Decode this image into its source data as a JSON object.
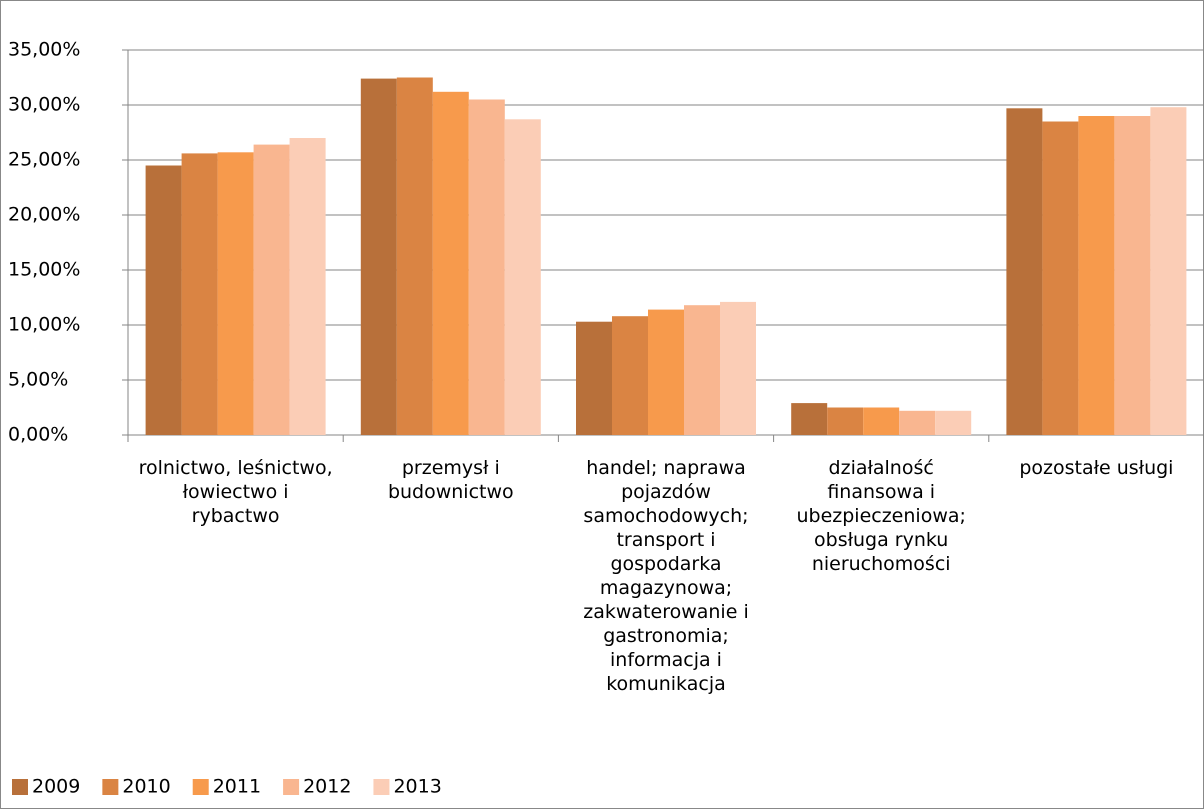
{
  "chart_data": {
    "type": "bar",
    "categories": [
      "rolnictwo, leśnictwo, łowiectwo i rybactwo",
      "przemysł i budownictwo",
      "handel; naprawa pojazdów samochodowych; transport i gospodarka magazynowa; zakwaterowanie i gastronomia; informacja i komunikacja",
      "działalność finansowa i ubezpieczeniowa; obsługa rynku nieruchomości",
      "pozostałe usługi"
    ],
    "series": [
      {
        "name": "2009",
        "color": "#b8703a",
        "values": [
          24.5,
          32.4,
          10.3,
          2.9,
          29.7
        ]
      },
      {
        "name": "2010",
        "color": "#da8443",
        "values": [
          25.6,
          32.5,
          10.8,
          2.5,
          28.5
        ]
      },
      {
        "name": "2011",
        "color": "#f79a4c",
        "values": [
          25.7,
          31.2,
          11.4,
          2.5,
          29.0
        ]
      },
      {
        "name": "2012",
        "color": "#f9b690",
        "values": [
          26.4,
          30.5,
          11.8,
          2.2,
          29.0
        ]
      },
      {
        "name": "2013",
        "color": "#fbcdb6",
        "values": [
          27.0,
          28.7,
          12.1,
          2.2,
          29.8
        ]
      }
    ],
    "ylim": [
      0,
      35
    ],
    "yticks": [
      {
        "value": 0,
        "label": "0,00%"
      },
      {
        "value": 5,
        "label": "5,00%"
      },
      {
        "value": 10,
        "label": "10,00%"
      },
      {
        "value": 15,
        "label": "15,00%"
      },
      {
        "value": 20,
        "label": "20,00%"
      },
      {
        "value": 25,
        "label": "25,00%"
      },
      {
        "value": 30,
        "label": "30,00%"
      },
      {
        "value": 35,
        "label": "35,00%"
      }
    ],
    "grid": true,
    "legend": "bottom-left"
  }
}
